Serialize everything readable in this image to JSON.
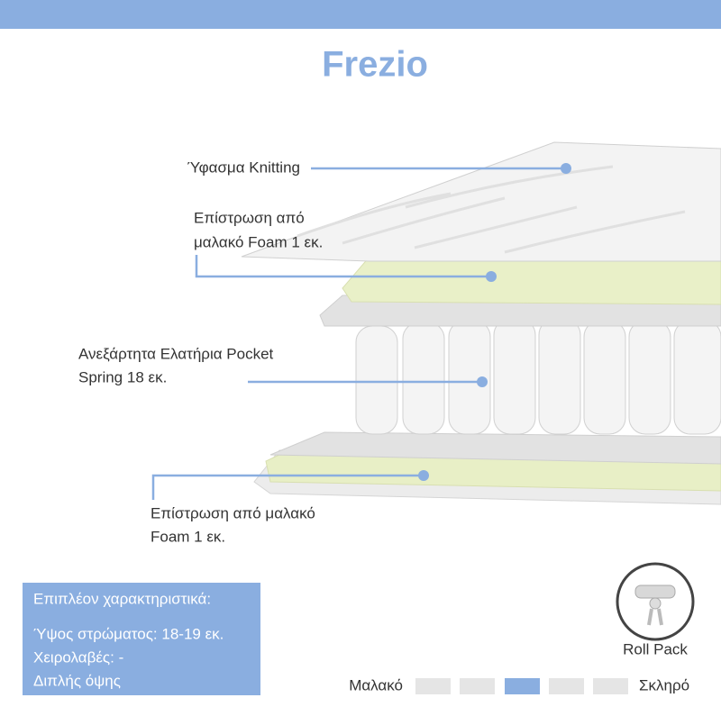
{
  "header": {
    "title": "Frezio"
  },
  "callouts": [
    {
      "lines": [
        "Ύφασμα Knitting"
      ]
    },
    {
      "lines": [
        "Επίστρωση από",
        "μαλακό Foam 1 εκ."
      ]
    },
    {
      "lines": [
        "Ανεξάρτητα Ελατήρια Pocket",
        "Spring 18 εκ."
      ]
    },
    {
      "lines": [
        "Επίστρωση από μαλακό",
        "Foam 1 εκ."
      ]
    }
  ],
  "features": {
    "heading": "Επιπλέον χαρακτηριστικά:",
    "items": [
      "Ύψος στρώματος: 18-19 εκ.",
      "Χειρολαβές: -",
      "Διπλής όψης"
    ]
  },
  "roll_pack": {
    "label": "Roll Pack"
  },
  "firmness": {
    "soft": "Μαλακό",
    "hard": "Σκληρό"
  }
}
